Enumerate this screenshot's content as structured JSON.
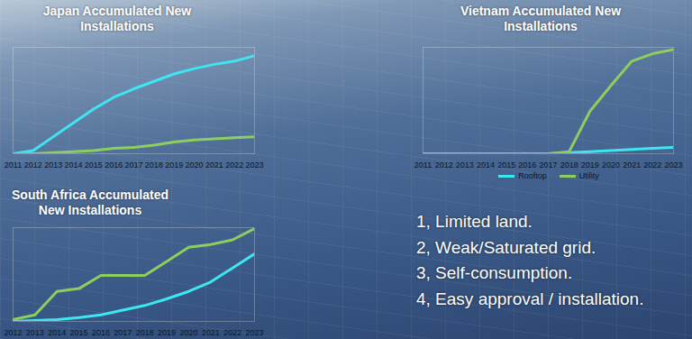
{
  "chart_data": [
    {
      "type": "line",
      "title": "Japan Accumulated New Installations",
      "x": [
        2011,
        2012,
        2013,
        2014,
        2015,
        2016,
        2017,
        2018,
        2019,
        2020,
        2021,
        2022,
        2023
      ],
      "xlim": [
        2011,
        2023
      ],
      "xticks": [
        2011,
        2012,
        2013,
        2014,
        2015,
        2016,
        2017,
        2018,
        2019,
        2020,
        2021,
        2022,
        2023
      ],
      "ylim": [
        0,
        100
      ],
      "yticks": [],
      "tick_labels": "x",
      "series": [
        {
          "name": "Rooftop",
          "color": "#3ee6f2",
          "values": [
            0,
            3,
            16,
            29,
            42,
            53,
            61,
            68,
            75,
            80,
            84,
            87,
            92
          ]
        },
        {
          "name": "Utility",
          "color": "#8ccf5e",
          "values": [
            0,
            0,
            1,
            2,
            3,
            5,
            6,
            8,
            11,
            13,
            14,
            15,
            16
          ]
        }
      ]
    },
    {
      "type": "line",
      "title": "Vietnam Accumulated New Installations",
      "x": [
        2011,
        2012,
        2013,
        2014,
        2015,
        2016,
        2017,
        2018,
        2019,
        2020,
        2021,
        2022,
        2023
      ],
      "xlim": [
        2011,
        2023
      ],
      "xticks": [
        2011,
        2012,
        2013,
        2014,
        2015,
        2016,
        2017,
        2018,
        2019,
        2020,
        2021,
        2022,
        2023
      ],
      "ylim": [
        0,
        100
      ],
      "yticks": [],
      "tick_labels": "x",
      "legend": "bottom",
      "series": [
        {
          "name": "Rooftop",
          "color": "#3ee6f2",
          "values": [
            0,
            0,
            0,
            0,
            0,
            0,
            0,
            1,
            2,
            3,
            4,
            5,
            6
          ]
        },
        {
          "name": "Utility",
          "color": "#8ccf5e",
          "values": [
            0,
            0,
            0,
            0,
            0,
            0,
            0,
            2,
            40,
            64,
            87,
            94,
            98
          ]
        }
      ]
    },
    {
      "type": "line",
      "title": "South Africa Accumulated New Installations",
      "x": [
        2012,
        2013,
        2014,
        2015,
        2016,
        2017,
        2018,
        2019,
        2020,
        2021,
        2022,
        2023
      ],
      "xlim": [
        2012,
        2023
      ],
      "xticks": [
        2012,
        2013,
        2014,
        2015,
        2016,
        2017,
        2018,
        2019,
        2020,
        2021,
        2022,
        2023
      ],
      "ylim": [
        0,
        100
      ],
      "yticks": [],
      "tick_labels": "x",
      "series": [
        {
          "name": "Rooftop",
          "color": "#3ee6f2",
          "values": [
            0,
            1,
            2,
            4,
            7,
            12,
            17,
            24,
            32,
            42,
            57,
            72
          ]
        },
        {
          "name": "Utility",
          "color": "#8ccf5e",
          "values": [
            2,
            7,
            32,
            35,
            49,
            49,
            49,
            64,
            79,
            82,
            87,
            99
          ]
        }
      ]
    }
  ],
  "list": [
    "1, Limited land.",
    "2, Weak/Saturated grid.",
    "3, Self-consumption.",
    "4, Easy approval / installation."
  ]
}
